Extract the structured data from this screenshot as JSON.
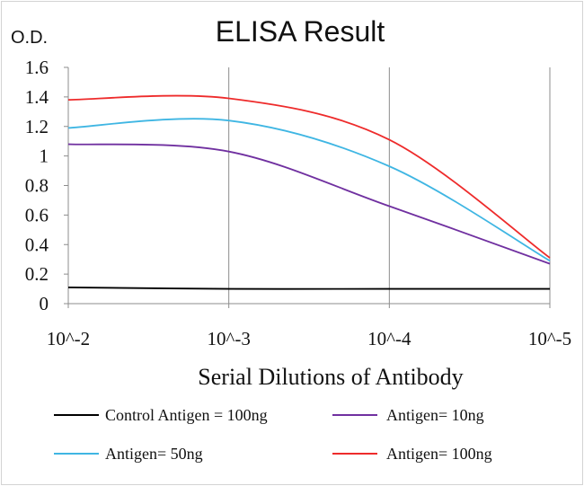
{
  "chart_data": {
    "type": "line",
    "title": "ELISA Result",
    "ylabel": "O.D.",
    "xlabel": "Serial Dilutions of Antibody",
    "x": [
      "10^-2",
      "10^-3",
      "10^-4",
      "10^-5"
    ],
    "ylim": [
      0,
      1.6
    ],
    "yticks": [
      "0",
      "0.2",
      "0.4",
      "0.6",
      "0.8",
      "1",
      "1.2",
      "1.4",
      "1.6"
    ],
    "grid": "vertical gridlines at x categories",
    "legend_position": "bottom",
    "series": [
      {
        "name": "Control Antigen = 100ng",
        "color": "#000000",
        "values": [
          0.11,
          0.1,
          0.1,
          0.1
        ]
      },
      {
        "name": "Antigen= 10ng",
        "color": "#7030a0",
        "values": [
          1.08,
          1.03,
          0.66,
          0.27
        ]
      },
      {
        "name": "Antigen= 50ng",
        "color": "#3fb6e3",
        "values": [
          1.19,
          1.24,
          0.93,
          0.29
        ]
      },
      {
        "name": "Antigen= 100ng",
        "color": "#ee2b2b",
        "values": [
          1.38,
          1.39,
          1.11,
          0.31
        ]
      }
    ]
  }
}
